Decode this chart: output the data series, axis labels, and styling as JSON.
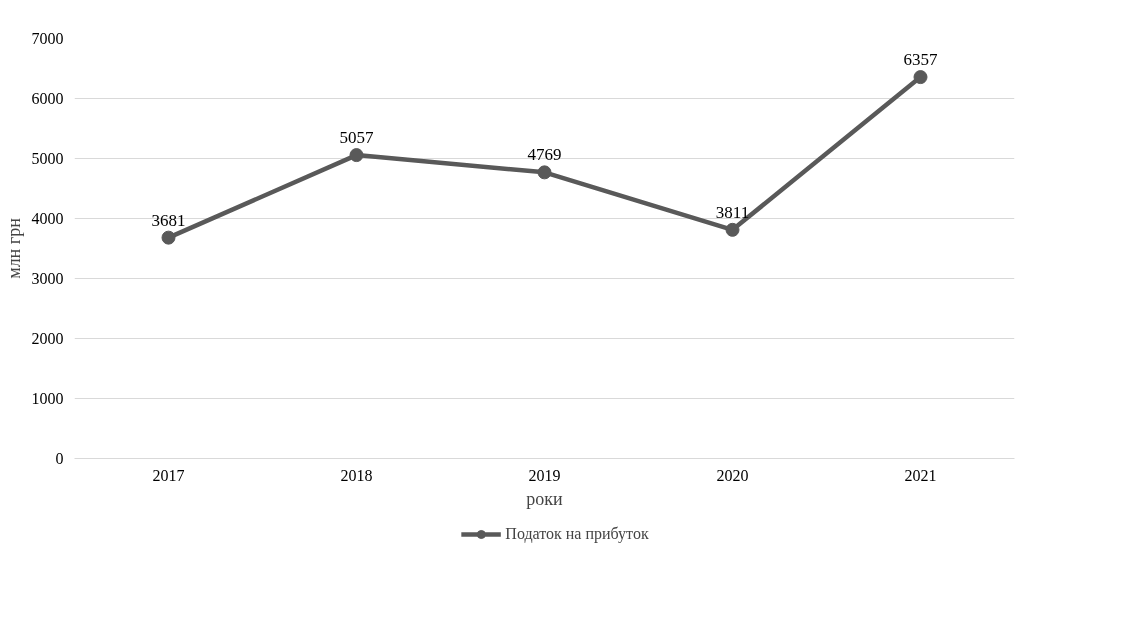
{
  "chart_data": {
    "type": "line",
    "categories": [
      "2017",
      "2018",
      "2019",
      "2020",
      "2021"
    ],
    "series": [
      {
        "name": "Податок на прибуток",
        "color": "#595959",
        "values": [
          3681,
          5057,
          4769,
          3811,
          6357
        ]
      }
    ],
    "xlabel": "роки",
    "ylabel": "млн грн",
    "ylim": [
      0,
      7000
    ],
    "yticks": [
      0,
      1000,
      2000,
      3000,
      4000,
      5000,
      6000,
      7000
    ],
    "grid": "y",
    "legend": "bottom",
    "marker": "circle",
    "line_style": "solid",
    "data_labels": true
  }
}
